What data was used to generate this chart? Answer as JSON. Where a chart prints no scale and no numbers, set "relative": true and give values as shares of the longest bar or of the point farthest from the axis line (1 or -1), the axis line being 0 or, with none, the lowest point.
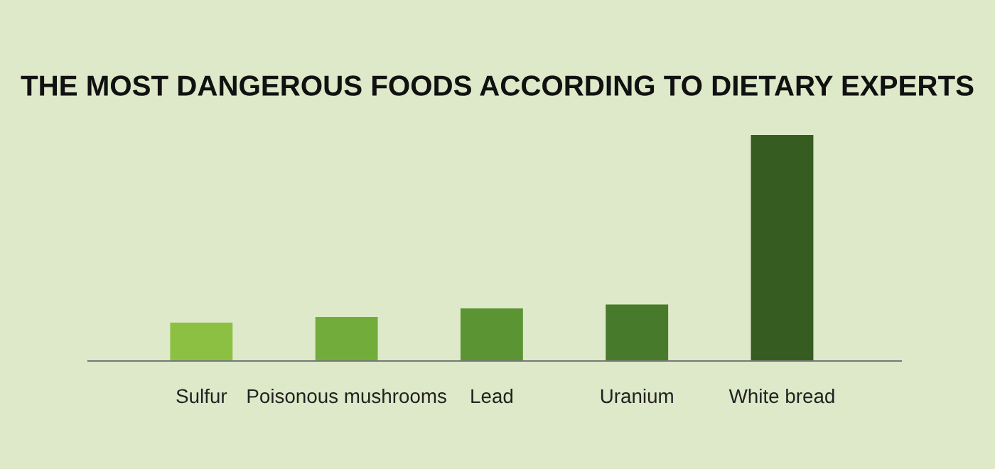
{
  "chart_data": {
    "type": "bar",
    "title": "THE MOST DANGEROUS FOODS ACCORDING TO DIETARY EXPERTS",
    "categories": [
      "Sulfur",
      "Poisonous mushrooms",
      "Lead",
      "Uranium",
      "White bread"
    ],
    "values": [
      0.17,
      0.195,
      0.233,
      0.25,
      1
    ],
    "colors": [
      "#8cc043",
      "#72ad3c",
      "#5a9433",
      "#487a2b",
      "#365c22"
    ],
    "relative": true,
    "grid": false,
    "legend": false
  }
}
